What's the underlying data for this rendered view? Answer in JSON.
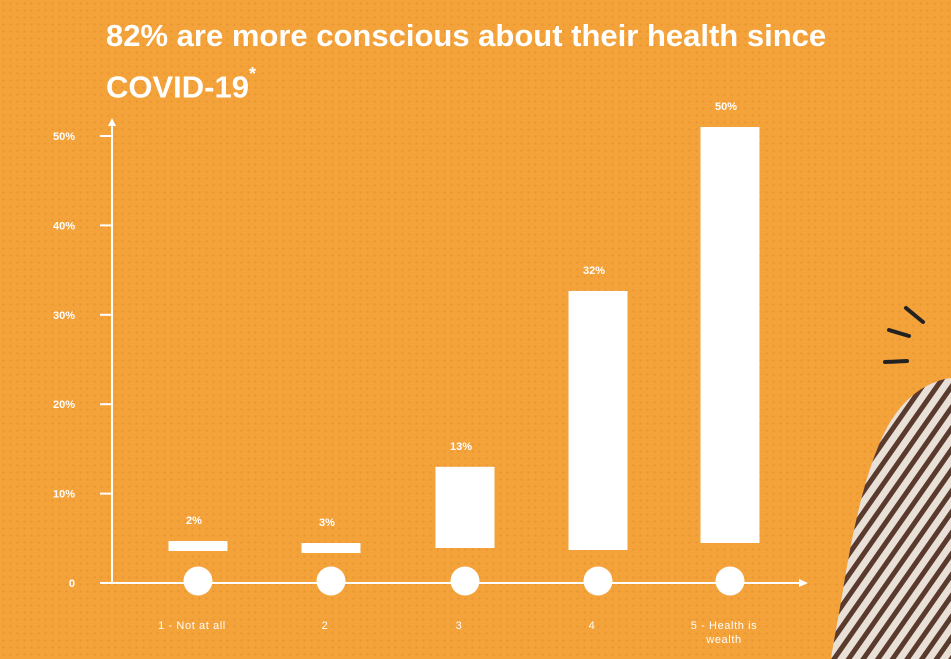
{
  "title": "82% are more conscious about their health since COVID-19",
  "title_marker": "*",
  "chart_data": {
    "type": "bar",
    "title": "82% are more conscious about their health since COVID-19",
    "categories": [
      "1 - Not at all",
      "2",
      "3",
      "4",
      "5 - Health is wealth"
    ],
    "values": [
      2,
      3,
      13,
      32,
      50
    ],
    "data_labels": [
      "2%",
      "3%",
      "13%",
      "32%",
      "50%"
    ],
    "y_ticks": [
      {
        "value": 0,
        "label": "0"
      },
      {
        "value": 10,
        "label": "10%"
      },
      {
        "value": 20,
        "label": "20%"
      },
      {
        "value": 30,
        "label": "30%"
      },
      {
        "value": 40,
        "label": "40%"
      },
      {
        "value": 50,
        "label": "50%"
      }
    ],
    "xlabel": "",
    "ylabel": "",
    "ylim": [
      0,
      50
    ],
    "grid": false,
    "legend": "none"
  },
  "colors": {
    "background": "#f4a23a",
    "bars": "#ffffff",
    "text": "#ffffff"
  }
}
